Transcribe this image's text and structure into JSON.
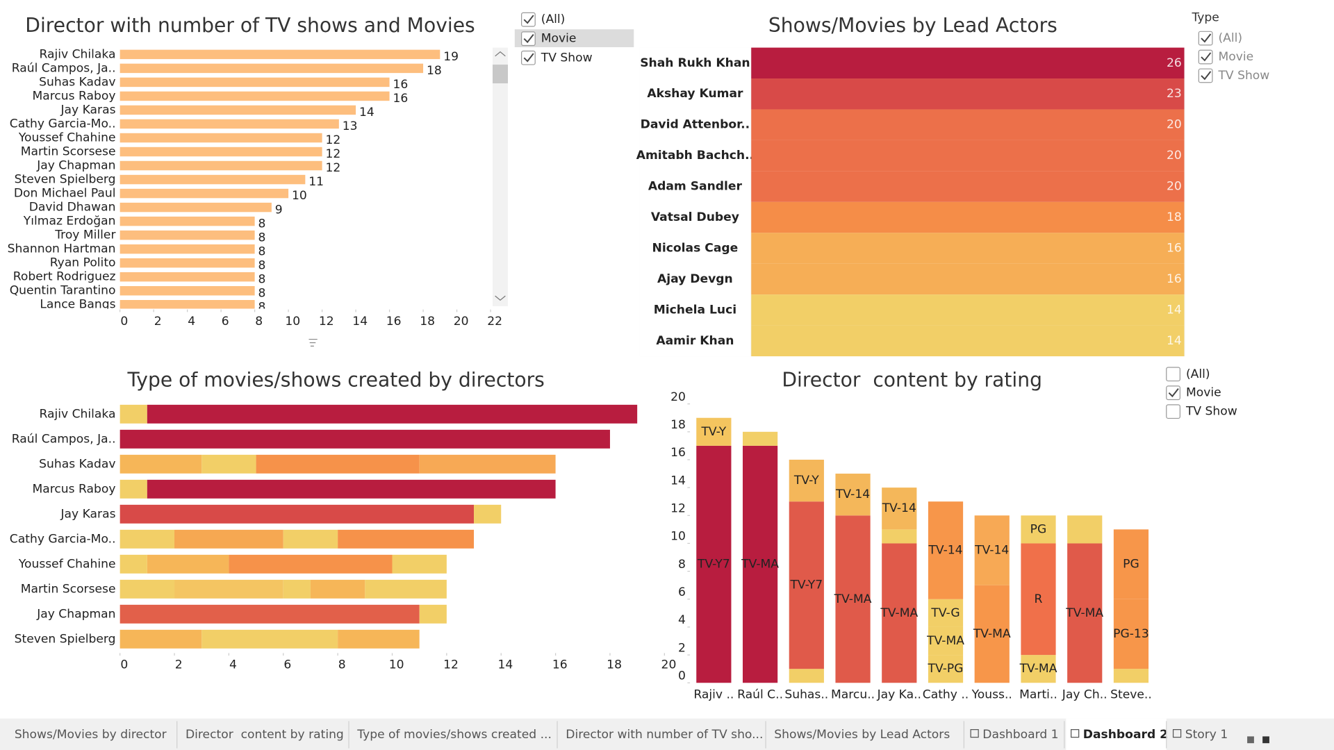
{
  "chart_data": [
    {
      "type": "hbar",
      "title": "Director with number of TV shows and Movies",
      "categories": [
        "Rajiv Chilaka",
        "Raúl Campos, Ja..",
        "Suhas Kadav",
        "Marcus Raboy",
        "Jay Karas",
        "Cathy Garcia-Mo..",
        "Youssef Chahine",
        "Martin Scorsese",
        "Jay Chapman",
        "Steven Spielberg",
        "Don Michael Paul",
        "David Dhawan",
        "Yılmaz Erdoğan",
        "Troy Miller",
        "Shannon Hartman",
        "Ryan Polito",
        "Robert Rodriguez",
        "Quentin Tarantino",
        "Lance Bangs"
      ],
      "values": [
        19,
        18,
        16,
        16,
        14,
        13,
        12,
        12,
        12,
        11,
        10,
        9,
        8,
        8,
        8,
        8,
        8,
        8,
        8
      ],
      "color": "#fdbe7e",
      "xlim": [
        0,
        22
      ],
      "xticks": [
        0,
        2,
        4,
        6,
        8,
        10,
        12,
        14,
        16,
        18,
        20,
        22
      ]
    },
    {
      "type": "heatmap",
      "title": "Shows/Movies by Lead Actors",
      "categories": [
        "Shah Rukh Khan",
        "Akshay Kumar",
        "David Attenbor..",
        "Amitabh Bachch..",
        "Adam Sandler",
        "Vatsal Dubey",
        "Nicolas Cage",
        "Ajay Devgn",
        "Michela Luci",
        "Aamir Khan"
      ],
      "values": [
        26,
        23,
        20,
        20,
        20,
        18,
        16,
        16,
        14,
        14
      ],
      "colors": [
        "#b81d3f",
        "#d84a48",
        "#ec704a",
        "#ec704a",
        "#ec704a",
        "#f58d48",
        "#f6ae56",
        "#f6ae56",
        "#f2cf67",
        "#f2cf67"
      ]
    },
    {
      "type": "stacked-hbar",
      "title": "Type of movies/shows created by directors",
      "categories": [
        "Rajiv Chilaka",
        "Raúl Campos, Ja..",
        "Suhas Kadav",
        "Marcus Raboy",
        "Jay Karas",
        "Cathy Garcia-Mo..",
        "Youssef Chahine",
        "Martin Scorsese",
        "Jay Chapman",
        "Steven Spielberg"
      ],
      "segments": [
        [
          1,
          18
        ],
        [
          18
        ],
        [
          3,
          2,
          6,
          5
        ],
        [
          1,
          15
        ],
        [
          13,
          1
        ],
        [
          2,
          4,
          2,
          5
        ],
        [
          1,
          3,
          6,
          2
        ],
        [
          2,
          4,
          1,
          2,
          3
        ],
        [
          11,
          1
        ],
        [
          3,
          5,
          3
        ]
      ],
      "colors": [
        [
          "#f2cf67",
          "#b81d3f"
        ],
        [
          "#b81d3f"
        ],
        [
          "#f6b658",
          "#f2cf67",
          "#f6924a",
          "#f7a955"
        ],
        [
          "#f2cf67",
          "#b81d3f"
        ],
        [
          "#d84a48",
          "#f2cf67"
        ],
        [
          "#f2cf67",
          "#f6a852",
          "#f2cf67",
          "#f6924a"
        ],
        [
          "#f2cf67",
          "#f6b658",
          "#f6924a",
          "#f2cf67"
        ],
        [
          "#f2cf67",
          "#f4c562",
          "#f2cf67",
          "#f6b658",
          "#f2cf67"
        ],
        [
          "#e2604a",
          "#f2cf67"
        ],
        [
          "#f6b658",
          "#f2cf67",
          "#f6b658"
        ]
      ],
      "xlim": [
        0,
        20
      ],
      "xticks": [
        0,
        2,
        4,
        6,
        8,
        10,
        12,
        14,
        16,
        18,
        20
      ]
    },
    {
      "type": "stacked-bar",
      "title": "Director  content by rating",
      "categories": [
        "Rajiv ..",
        "Raúl C..",
        "Suhas..",
        "Marcu..",
        "Jay Ka..",
        "Cathy ..",
        "Youss..",
        "Marti..",
        "Jay Ch..",
        "Steve.."
      ],
      "segments": [
        [
          17,
          2
        ],
        [
          17,
          1
        ],
        [
          1,
          12,
          3
        ],
        [
          12,
          3
        ],
        [
          10,
          1,
          3
        ],
        [
          2,
          2,
          2,
          7
        ],
        [
          7,
          5
        ],
        [
          2,
          8,
          2
        ],
        [
          10,
          2
        ],
        [
          1,
          5,
          5
        ]
      ],
      "segment_labels": [
        [
          "TV-Y7",
          "TV-Y"
        ],
        [
          "TV-MA",
          null
        ],
        [
          null,
          "TV-Y7",
          "TV-Y"
        ],
        [
          "TV-MA",
          "TV-14"
        ],
        [
          "TV-MA",
          null,
          "TV-14"
        ],
        [
          "TV-PG",
          "TV-MA",
          "TV-G",
          "TV-14"
        ],
        [
          "TV-MA",
          "TV-14"
        ],
        [
          "TV-MA",
          "R",
          "PG"
        ],
        [
          "TV-MA",
          null
        ],
        [
          null,
          "PG-13",
          "PG"
        ]
      ],
      "colors": [
        [
          "#b81d3f",
          "#f4c55f"
        ],
        [
          "#b81d3f",
          "#f2cf67"
        ],
        [
          "#f2cf67",
          "#e05a4a",
          "#f4b75a"
        ],
        [
          "#e05a4a",
          "#f4b75a"
        ],
        [
          "#e05a4a",
          "#f2cf67",
          "#f4b75a"
        ],
        [
          "#f2cf67",
          "#f2cf67",
          "#f2cf67",
          "#f7964a"
        ],
        [
          "#f7964a",
          "#f7a955"
        ],
        [
          "#f2cf67",
          "#f0704a",
          "#f2cf67"
        ],
        [
          "#e05a4a",
          "#f2cf67"
        ],
        [
          "#f2cf67",
          "#f7964a",
          "#f7964a"
        ]
      ],
      "ylim": [
        0,
        20
      ],
      "yticks": [
        0,
        2,
        4,
        6,
        8,
        10,
        12,
        14,
        16,
        18,
        20
      ]
    }
  ],
  "filters": [
    {
      "items": [
        {
          "label": "(All)",
          "checked": true
        },
        {
          "label": "Movie",
          "checked": true
        },
        {
          "label": "TV Show",
          "checked": true
        }
      ]
    },
    {
      "title": "Type",
      "items": [
        {
          "label": "(All)",
          "checked": true
        },
        {
          "label": "Movie",
          "checked": true
        },
        {
          "label": "TV Show",
          "checked": true
        }
      ]
    },
    {
      "items": [
        {
          "label": "(All)",
          "checked": false
        },
        {
          "label": "Movie",
          "checked": true
        },
        {
          "label": "TV Show",
          "checked": false
        }
      ]
    }
  ],
  "tabs": [
    {
      "label": "Shows/Movies by director",
      "active": false
    },
    {
      "label": "Director  content by rating",
      "active": false
    },
    {
      "label": "Type of movies/shows created ...",
      "active": false
    },
    {
      "label": "Director with number of TV sho...",
      "active": false
    },
    {
      "label": "Shows/Movies by Lead Actors",
      "active": false
    },
    {
      "label": "Dashboard 1",
      "active": false
    },
    {
      "label": "Dashboard 2",
      "active": true
    },
    {
      "label": "Story 1",
      "active": false
    }
  ]
}
